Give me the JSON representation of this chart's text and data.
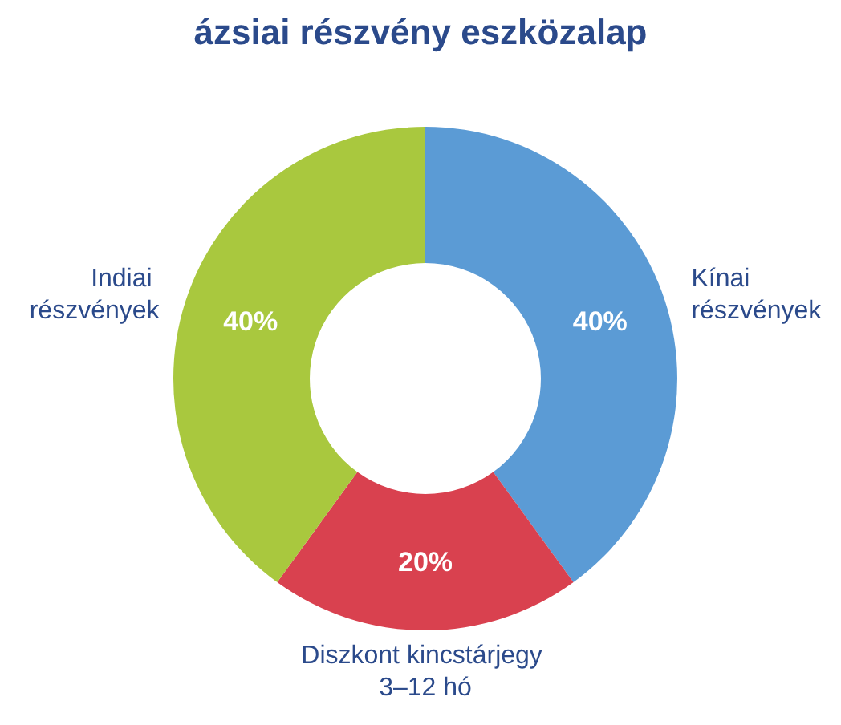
{
  "chart_data": {
    "type": "donut",
    "title": "ázsiai részvény eszközalap",
    "categories": [
      "Kínai részvények",
      "Diszkont kincstárjegy 3–12 hó",
      "Indiai részvények"
    ],
    "values": [
      40,
      20,
      40
    ],
    "colors": [
      "#5b9bd5",
      "#d9414f",
      "#a9c83e"
    ],
    "value_labels": [
      "40%",
      "20%",
      "40%"
    ],
    "legend": false
  }
}
